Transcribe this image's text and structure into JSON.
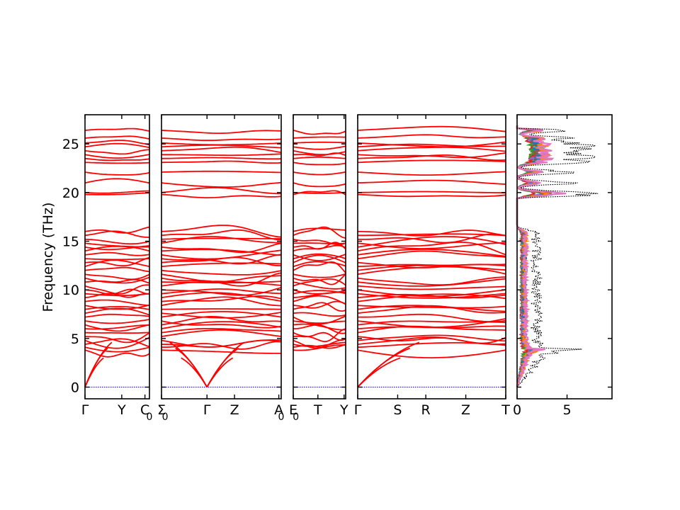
{
  "chart_data": {
    "type": "line",
    "title": "",
    "ylabel": "Frequency (THz)",
    "ylim": [
      -1.2,
      28.0
    ],
    "yticks": [
      0,
      5,
      10,
      15,
      20,
      25
    ],
    "band_color": "#ff0000",
    "zero_line_color": "#0000cc",
    "band_panels": [
      {
        "xticks": [
          {
            "label": "Γ",
            "pos": 0.0
          },
          {
            "label": "Y",
            "pos": 0.57
          },
          {
            "label": "C",
            "pos": 0.93
          },
          {
            "label": "0",
            "pos": 1.0,
            "sub": true
          }
        ]
      },
      {
        "xticks": [
          {
            "label": "Σ",
            "pos": 0.0
          },
          {
            "label": "0",
            "pos": 0.03,
            "sub": true
          },
          {
            "label": "Γ",
            "pos": 0.38
          },
          {
            "label": "Z",
            "pos": 0.61
          },
          {
            "label": "A",
            "pos": 0.98
          },
          {
            "label": "0",
            "pos": 1.0,
            "sub": true
          }
        ]
      },
      {
        "xticks": [
          {
            "label": "E",
            "pos": 0.0
          },
          {
            "label": "0",
            "pos": 0.05,
            "sub": true
          },
          {
            "label": "T",
            "pos": 0.47
          },
          {
            "label": "Y",
            "pos": 0.97
          }
        ]
      },
      {
        "xticks": [
          {
            "label": "Γ",
            "pos": 0.0
          },
          {
            "label": "S",
            "pos": 0.27
          },
          {
            "label": "R",
            "pos": 0.46
          },
          {
            "label": "Z",
            "pos": 0.73
          },
          {
            "label": "T",
            "pos": 1.0
          }
        ]
      }
    ],
    "dos_panel": {
      "xlim": [
        0,
        9.5
      ],
      "xticks": [
        0,
        5
      ],
      "total_color": "#000000",
      "partial_colors": [
        "#d62728",
        "#2ca02c",
        "#9467bd",
        "#8c564b",
        "#1f77b4",
        "#ff7f0e",
        "#e377c2"
      ]
    },
    "band_frequencies_thz": [
      26.4,
      25.6,
      25.1,
      24.7,
      24.3,
      23.9,
      23.5,
      23.1,
      22.1,
      21.0,
      20.0,
      19.8,
      16.0,
      15.6,
      15.2,
      14.8,
      14.4,
      14.0,
      13.6,
      13.2,
      12.8,
      12.4,
      12.0,
      11.6,
      11.2,
      10.8,
      10.4,
      10.0,
      9.6,
      9.2,
      8.8,
      8.4,
      8.0,
      7.6,
      7.2,
      6.8,
      6.4,
      6.0,
      5.6,
      5.2,
      4.8,
      4.4,
      4.1,
      3.8
    ]
  }
}
